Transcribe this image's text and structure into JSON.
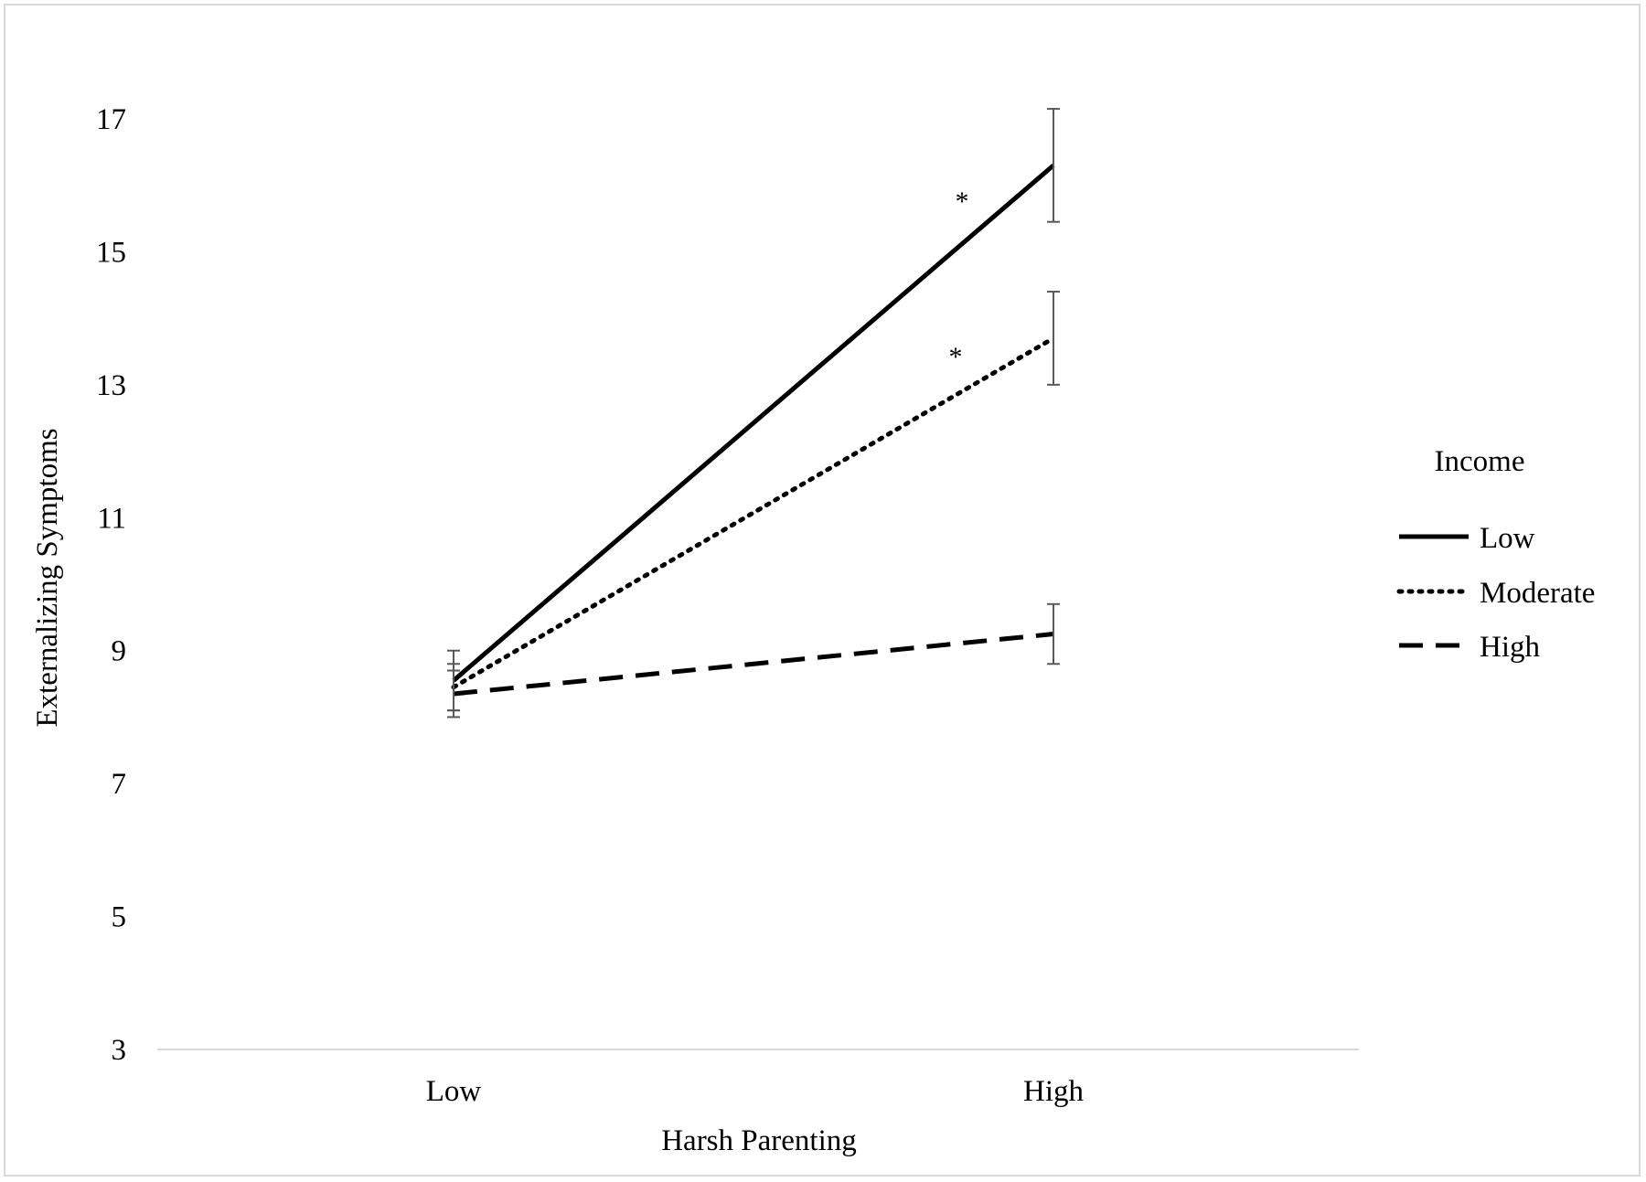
{
  "chart_data": {
    "type": "line",
    "title": "",
    "xlabel": "Harsh Parenting",
    "ylabel": "Externalizing Symptoms",
    "categories": [
      "Low",
      "High"
    ],
    "ylim": [
      3,
      17
    ],
    "yticks": [
      3,
      5,
      7,
      9,
      11,
      13,
      15,
      17
    ],
    "legend_title": "Income",
    "legend_position": "right",
    "series": [
      {
        "name": "Low",
        "style": "solid",
        "values": [
          8.55,
          16.3
        ],
        "error": [
          0.45,
          0.85
        ],
        "annotation": "*"
      },
      {
        "name": "Moderate",
        "style": "dotted",
        "values": [
          8.45,
          13.7
        ],
        "error": [
          0.35,
          0.7
        ],
        "annotation": "*"
      },
      {
        "name": "High",
        "style": "dashed",
        "values": [
          8.35,
          9.25
        ],
        "error": [
          0.35,
          0.45
        ],
        "annotation": ""
      }
    ]
  },
  "colors": {
    "line": "#000000",
    "error_bar": "#595959",
    "axis": "#d9d9d9"
  }
}
